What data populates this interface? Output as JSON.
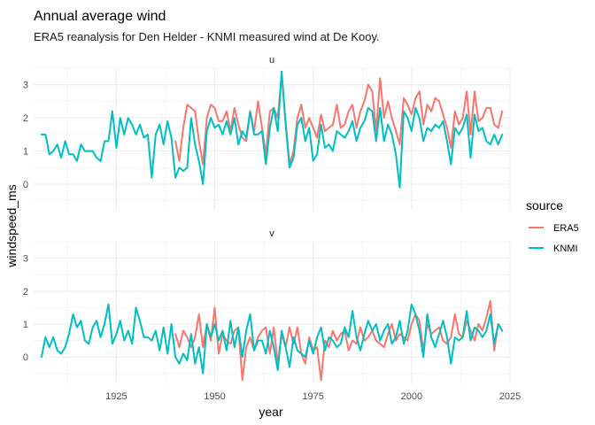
{
  "chart_data": {
    "type": "line",
    "title": "Annual average wind",
    "subtitle": "ERA5 reanalysis for Den Helder - KNMI measured wind at De Kooy.",
    "xlabel": "year",
    "ylabel": "windspeed_ms",
    "xlim": [
      1904,
      2025
    ],
    "x_ticks": [
      1925,
      1950,
      1975,
      2000,
      2025
    ],
    "y_ticks": [
      0,
      1,
      2,
      3
    ],
    "grid": true,
    "legend": {
      "title": "source",
      "position": "right",
      "entries": [
        {
          "name": "ERA5",
          "color": "#F8766D"
        },
        {
          "name": "KNMI",
          "color": "#00BFC4"
        }
      ]
    },
    "facets": [
      {
        "label": "u",
        "ylim": [
          -0.8,
          3.5
        ],
        "series": [
          {
            "name": "ERA5",
            "color": "#F8766D",
            "x": [
              1940,
              1941,
              1942,
              1943,
              1944,
              1945,
              1946,
              1947,
              1948,
              1949,
              1950,
              1951,
              1952,
              1953,
              1954,
              1955,
              1956,
              1957,
              1958,
              1959,
              1960,
              1961,
              1962,
              1963,
              1964,
              1965,
              1966,
              1967,
              1968,
              1969,
              1970,
              1971,
              1972,
              1973,
              1974,
              1975,
              1976,
              1977,
              1978,
              1979,
              1980,
              1981,
              1982,
              1983,
              1984,
              1985,
              1986,
              1987,
              1988,
              1989,
              1990,
              1991,
              1992,
              1993,
              1994,
              1995,
              1996,
              1997,
              1998,
              1999,
              2000,
              2001,
              2002,
              2003,
              2004,
              2005,
              2006,
              2007,
              2008,
              2009,
              2010,
              2011,
              2012,
              2013,
              2014,
              2015,
              2016,
              2017,
              2018,
              2019,
              2020,
              2021,
              2022,
              2023
            ],
            "y": [
              1.3,
              0.7,
              1.7,
              2.4,
              2.3,
              2.2,
              1.3,
              0.6,
              2.0,
              2.4,
              2.3,
              1.9,
              1.9,
              2.2,
              1.6,
              2.3,
              1.8,
              1.4,
              1.3,
              2.2,
              1.6,
              2.5,
              1.7,
              0.9,
              2.2,
              2.3,
              2.0,
              3.3,
              1.9,
              0.6,
              1.0,
              2.0,
              2.4,
              1.7,
              2.0,
              1.7,
              1.4,
              2.1,
              1.6,
              1.7,
              1.8,
              2.4,
              1.7,
              1.8,
              2.2,
              2.4,
              1.7,
              2.2,
              2.5,
              3.0,
              2.8,
              1.6,
              3.2,
              2.0,
              2.5,
              2.0,
              1.6,
              1.2,
              2.6,
              2.4,
              2.1,
              2.6,
              2.8,
              1.8,
              2.4,
              2.2,
              2.6,
              2.5,
              2.1,
              1.7,
              1.1,
              2.2,
              1.8,
              2.0,
              2.8,
              1.5,
              2.8,
              1.9,
              2.0,
              2.3,
              2.3,
              1.8,
              1.7,
              2.2
            ]
          },
          {
            "name": "KNMI",
            "color": "#00BFC4",
            "x": [
              1906,
              1907,
              1908,
              1909,
              1910,
              1911,
              1912,
              1913,
              1914,
              1915,
              1916,
              1917,
              1918,
              1919,
              1920,
              1921,
              1922,
              1923,
              1924,
              1925,
              1926,
              1927,
              1928,
              1929,
              1930,
              1931,
              1932,
              1933,
              1934,
              1935,
              1936,
              1937,
              1938,
              1939,
              1940,
              1941,
              1942,
              1943,
              1944,
              1945,
              1946,
              1947,
              1948,
              1949,
              1950,
              1951,
              1952,
              1953,
              1954,
              1955,
              1956,
              1957,
              1958,
              1959,
              1960,
              1961,
              1962,
              1963,
              1964,
              1965,
              1966,
              1967,
              1968,
              1969,
              1970,
              1971,
              1972,
              1973,
              1974,
              1975,
              1976,
              1977,
              1978,
              1979,
              1980,
              1981,
              1982,
              1983,
              1984,
              1985,
              1986,
              1987,
              1988,
              1989,
              1990,
              1991,
              1992,
              1993,
              1994,
              1995,
              1996,
              1997,
              1998,
              1999,
              2000,
              2001,
              2002,
              2003,
              2004,
              2005,
              2006,
              2007,
              2008,
              2009,
              2010,
              2011,
              2012,
              2013,
              2014,
              2015,
              2016,
              2017,
              2018,
              2019,
              2020,
              2021,
              2022,
              2023
            ],
            "y": [
              1.5,
              1.5,
              0.9,
              1.0,
              1.2,
              0.8,
              1.3,
              0.9,
              0.9,
              0.7,
              1.2,
              1.0,
              1.0,
              1.0,
              0.8,
              0.7,
              1.3,
              1.3,
              2.2,
              1.1,
              2.0,
              1.5,
              2.0,
              1.8,
              1.5,
              1.8,
              1.4,
              1.5,
              0.2,
              1.5,
              1.8,
              1.2,
              1.9,
              1.4,
              0.2,
              0.5,
              0.4,
              0.5,
              2.0,
              1.2,
              0.7,
              0.0,
              1.6,
              2.0,
              1.7,
              1.8,
              1.5,
              1.9,
              1.5,
              2.0,
              1.2,
              1.6,
              1.4,
              2.2,
              1.5,
              1.5,
              1.6,
              0.6,
              1.7,
              2.3,
              1.6,
              3.4,
              1.8,
              0.5,
              0.8,
              1.8,
              2.0,
              1.3,
              1.7,
              0.7,
              0.9,
              1.8,
              1.1,
              1.2,
              1.0,
              1.6,
              1.5,
              1.4,
              1.6,
              1.9,
              1.3,
              1.7,
              1.9,
              2.3,
              2.2,
              1.3,
              2.3,
              1.3,
              1.8,
              1.5,
              0.9,
              -0.1,
              2.2,
              2.0,
              1.6,
              2.3,
              2.0,
              1.3,
              1.7,
              1.6,
              1.8,
              1.7,
              1.9,
              1.3,
              0.6,
              1.7,
              1.5,
              1.7,
              2.1,
              0.8,
              2.1,
              1.6,
              1.7,
              1.3,
              1.2,
              1.5,
              1.2,
              1.5
            ]
          }
        ]
      },
      {
        "label": "v",
        "ylim": [
          -0.8,
          3.5
        ],
        "series": [
          {
            "name": "ERA5",
            "color": "#F8766D",
            "x": [
              1940,
              1941,
              1942,
              1943,
              1944,
              1945,
              1946,
              1947,
              1948,
              1949,
              1950,
              1951,
              1952,
              1953,
              1954,
              1955,
              1956,
              1957,
              1958,
              1959,
              1960,
              1961,
              1962,
              1963,
              1964,
              1965,
              1966,
              1967,
              1968,
              1969,
              1970,
              1971,
              1972,
              1973,
              1974,
              1975,
              1976,
              1977,
              1978,
              1979,
              1980,
              1981,
              1982,
              1983,
              1984,
              1985,
              1986,
              1987,
              1988,
              1989,
              1990,
              1991,
              1992,
              1993,
              1994,
              1995,
              1996,
              1997,
              1998,
              1999,
              2000,
              2001,
              2002,
              2003,
              2004,
              2005,
              2006,
              2007,
              2008,
              2009,
              2010,
              2011,
              2012,
              2013,
              2014,
              2015,
              2016,
              2017,
              2018,
              2019,
              2020,
              2021,
              2022,
              2023
            ],
            "y": [
              0.7,
              0.3,
              0.8,
              0.6,
              0.3,
              0.6,
              1.3,
              0.3,
              1.0,
              0.5,
              1.5,
              0.1,
              0.7,
              0.5,
              0.4,
              0.8,
              0.9,
              -0.7,
              0.3,
              0.6,
              0.2,
              0.6,
              0.8,
              0.9,
              0.1,
              0.9,
              -0.2,
              0.7,
              0.3,
              0.9,
              0.4,
              0.9,
              0.1,
              -0.2,
              0.6,
              0.2,
              0.3,
              -0.7,
              0.5,
              0.3,
              0.8,
              0.5,
              0.7,
              0.8,
              0.2,
              0.5,
              0.4,
              0.9,
              0.5,
              0.6,
              0.8,
              0.5,
              0.4,
              0.3,
              0.7,
              1.0,
              0.5,
              0.7,
              0.6,
              0.5,
              1.0,
              1.3,
              1.1,
              0.2,
              1.0,
              0.7,
              0.8,
              0.9,
              0.5,
              0.4,
              0.6,
              1.3,
              0.7,
              0.6,
              1.1,
              0.8,
              0.5,
              1.0,
              0.8,
              1.2,
              1.7,
              0.2,
              1.0,
              0.8
            ]
          },
          {
            "name": "KNMI",
            "color": "#00BFC4",
            "x": [
              1906,
              1907,
              1908,
              1909,
              1910,
              1911,
              1912,
              1913,
              1914,
              1915,
              1916,
              1917,
              1918,
              1919,
              1920,
              1921,
              1922,
              1923,
              1924,
              1925,
              1926,
              1927,
              1928,
              1929,
              1930,
              1931,
              1932,
              1933,
              1934,
              1935,
              1936,
              1937,
              1938,
              1939,
              1940,
              1941,
              1942,
              1943,
              1944,
              1945,
              1946,
              1947,
              1948,
              1949,
              1950,
              1951,
              1952,
              1953,
              1954,
              1955,
              1956,
              1957,
              1958,
              1959,
              1960,
              1961,
              1962,
              1963,
              1964,
              1965,
              1966,
              1967,
              1968,
              1969,
              1970,
              1971,
              1972,
              1973,
              1974,
              1975,
              1976,
              1977,
              1978,
              1979,
              1980,
              1981,
              1982,
              1983,
              1984,
              1985,
              1986,
              1987,
              1988,
              1989,
              1990,
              1991,
              1992,
              1993,
              1994,
              1995,
              1996,
              1997,
              1998,
              1999,
              2000,
              2001,
              2002,
              2003,
              2004,
              2005,
              2006,
              2007,
              2008,
              2009,
              2010,
              2011,
              2012,
              2013,
              2014,
              2015,
              2016,
              2017,
              2018,
              2019,
              2020,
              2021,
              2022,
              2023
            ],
            "y": [
              0.0,
              0.6,
              0.3,
              0.6,
              0.2,
              0.1,
              0.3,
              0.7,
              1.3,
              0.9,
              1.1,
              0.5,
              0.4,
              0.9,
              1.1,
              0.6,
              1.0,
              1.6,
              0.4,
              0.7,
              1.1,
              0.5,
              0.8,
              0.4,
              1.5,
              1.1,
              0.6,
              0.6,
              0.5,
              0.8,
              0.2,
              0.9,
              0.1,
              1.0,
              0.0,
              -0.2,
              0.1,
              -0.1,
              0.7,
              -0.2,
              0.3,
              -0.5,
              1.0,
              0.6,
              1.0,
              0.5,
              0.8,
              0.2,
              1.1,
              0.3,
              0.9,
              0.0,
              0.8,
              1.3,
              0.2,
              0.5,
              0.5,
              0.1,
              0.8,
              0.3,
              -0.4,
              0.8,
              0.3,
              -0.3,
              0.6,
              0.2,
              0.1,
              0.0,
              0.5,
              0.1,
              0.6,
              0.9,
              0.2,
              0.6,
              0.5,
              0.3,
              0.4,
              0.9,
              0.6,
              1.4,
              0.6,
              0.2,
              0.7,
              1.1,
              0.8,
              1.0,
              0.5,
              0.8,
              1.0,
              0.4,
              0.6,
              1.1,
              0.4,
              0.8,
              1.6,
              1.3,
              0.8,
              0.0,
              1.3,
              0.6,
              0.3,
              0.7,
              1.1,
              0.6,
              -0.2,
              0.6,
              0.5,
              0.6,
              1.4,
              0.5,
              0.9,
              0.8,
              0.6,
              0.8,
              1.3,
              0.4,
              1.0,
              0.8
            ]
          }
        ]
      }
    ]
  }
}
